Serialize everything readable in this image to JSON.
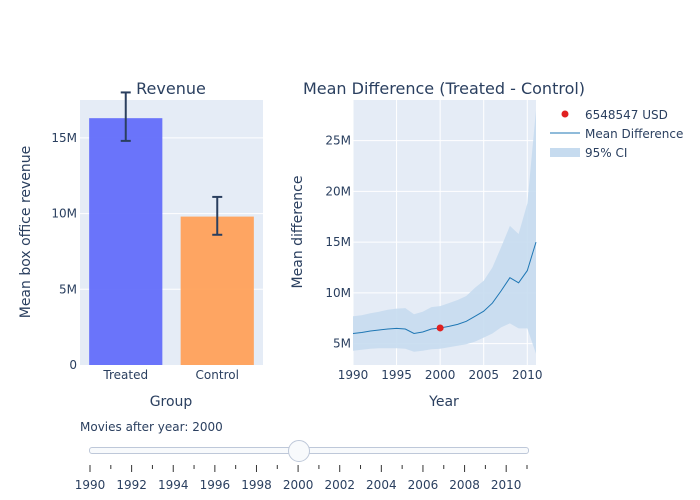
{
  "chart_data": [
    {
      "type": "bar",
      "title": "Revenue",
      "xlabel": "Group",
      "ylabel": "Mean box office revenue",
      "categories": [
        "Treated",
        "Control"
      ],
      "values": [
        16300000,
        9800000
      ],
      "error_low": [
        14800000,
        8600000
      ],
      "error_high": [
        18000000,
        11100000
      ],
      "ylim": [
        0,
        17500000
      ],
      "yticks": [
        0,
        5000000,
        10000000,
        15000000
      ],
      "ytick_labels": [
        "0",
        "5M",
        "10M",
        "15M"
      ],
      "bar_colors": [
        "#636efa",
        "#ffa15a"
      ]
    },
    {
      "type": "line",
      "title": "Mean Difference (Treated - Control)",
      "xlabel": "Year",
      "ylabel": "Mean difference",
      "xlim": [
        1990,
        2011
      ],
      "ylim": [
        2900000,
        29000000
      ],
      "xticks": [
        1990,
        1995,
        2000,
        2005,
        2010
      ],
      "yticks": [
        5000000,
        10000000,
        15000000,
        20000000,
        25000000
      ],
      "ytick_labels": [
        "5M",
        "10M",
        "15M",
        "20M",
        "25M"
      ],
      "x": [
        1990,
        1991,
        1992,
        1993,
        1994,
        1995,
        1996,
        1997,
        1998,
        1999,
        2000,
        2001,
        2002,
        2003,
        2004,
        2005,
        2006,
        2007,
        2008,
        2009,
        2010,
        2011
      ],
      "series": [
        {
          "name": "Mean Difference",
          "values": [
            6000000,
            6100000,
            6250000,
            6350000,
            6450000,
            6500000,
            6450000,
            6000000,
            6150000,
            6450000,
            6548547,
            6700000,
            6900000,
            7200000,
            7700000,
            8200000,
            9000000,
            10200000,
            11500000,
            11000000,
            12200000,
            15000000
          ],
          "color": "#1f77b4"
        }
      ],
      "ci": {
        "name": "95% CI",
        "lower": [
          4300000,
          4400000,
          4500000,
          4550000,
          4550000,
          4550000,
          4500000,
          4200000,
          4300000,
          4450000,
          4500000,
          4650000,
          4800000,
          4950000,
          5200000,
          5600000,
          6000000,
          6600000,
          7000000,
          6500000,
          6500000,
          4000000
        ],
        "upper": [
          7700000,
          7800000,
          8000000,
          8150000,
          8350000,
          8450000,
          8500000,
          7900000,
          8150000,
          8600000,
          8700000,
          9000000,
          9300000,
          9700000,
          10500000,
          11200000,
          12500000,
          14500000,
          16600000,
          15800000,
          18800000,
          28000000
        ],
        "color": "#c6dbef"
      },
      "highlight_point": {
        "name": "6548547 USD",
        "x": 2000,
        "y": 6548547,
        "color": "#e02020"
      }
    }
  ],
  "slider": {
    "label": "Movies after year: 2000",
    "value": 2000,
    "min": 1990,
    "max": 2011,
    "tick_labels": [
      "1990",
      "1992",
      "1994",
      "1996",
      "1998",
      "2000",
      "2002",
      "2004",
      "2006",
      "2008",
      "2010"
    ]
  },
  "colors": {
    "plot_bg": "#e5ecf6",
    "grid": "#ffffff",
    "text": "#2a3f5f"
  }
}
